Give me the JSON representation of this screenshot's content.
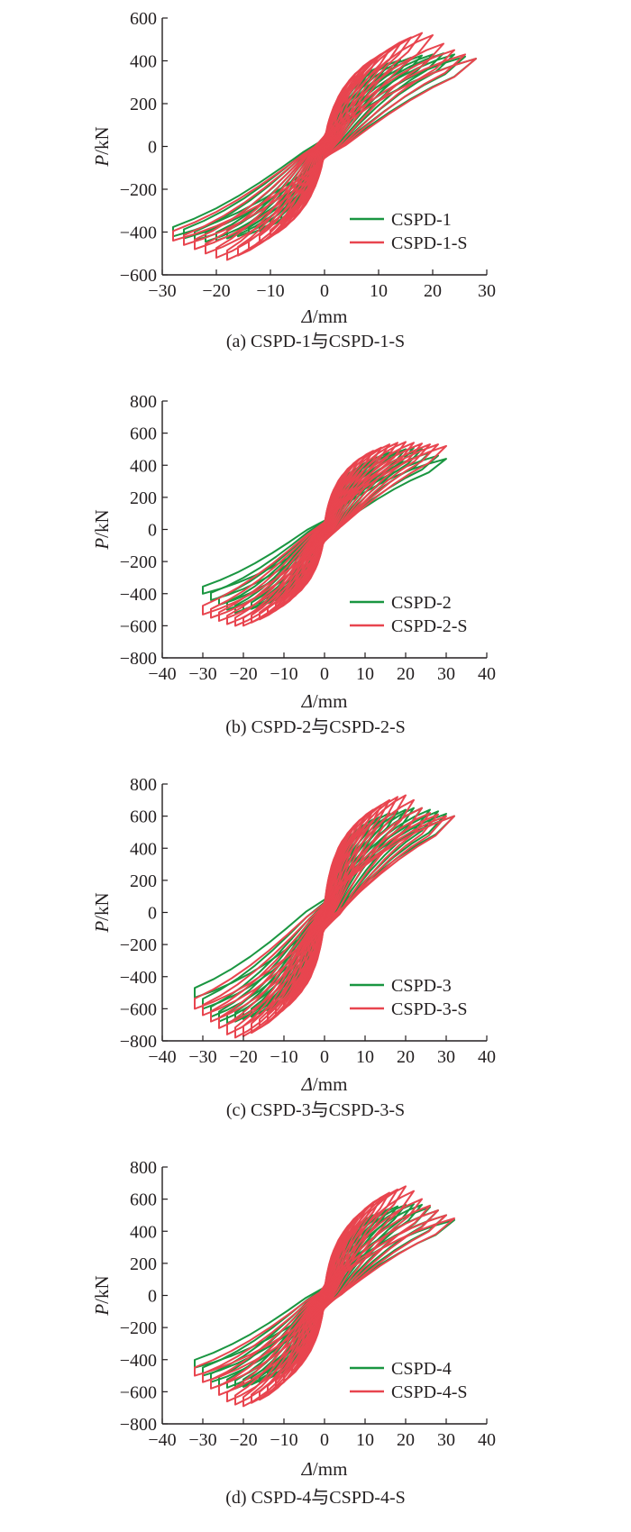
{
  "colors": {
    "series1": "#1a9641",
    "series2": "#e8454f",
    "axis": "#231f20"
  },
  "chart_data": [
    {
      "type": "line",
      "caption": "(a) CSPD-1与CSPD-1-S",
      "xlabel_var": "Δ",
      "xlabel_unit": "/mm",
      "ylabel_var": "P",
      "ylabel_unit": "/kN",
      "xlim": [
        -30,
        30
      ],
      "ylim": [
        -600,
        600
      ],
      "xticks": [
        -30,
        -20,
        -10,
        0,
        10,
        20,
        30
      ],
      "yticks": [
        -600,
        -400,
        -200,
        0,
        200,
        400,
        600
      ],
      "legend": "bottom-right",
      "series": [
        {
          "name": "CSPD-1",
          "color": "#1a9641",
          "amplitudes": [
            2,
            4,
            6,
            8,
            10,
            12,
            14,
            16,
            18,
            20,
            22,
            24,
            26,
            28
          ],
          "peak_pos": [
            150,
            240,
            300,
            340,
            370,
            390,
            405,
            415,
            425,
            430,
            435,
            430,
            420,
            410
          ],
          "peak_neg": [
            -150,
            -240,
            -300,
            -340,
            -370,
            -395,
            -410,
            -420,
            -430,
            -440,
            -445,
            -440,
            -430,
            -420
          ]
        },
        {
          "name": "CSPD-1-S",
          "color": "#e8454f",
          "amplitudes": [
            2,
            4,
            6,
            8,
            10,
            12,
            14,
            16,
            18,
            20,
            22,
            24,
            26,
            28
          ],
          "peak_pos": [
            160,
            260,
            330,
            380,
            420,
            450,
            480,
            510,
            530,
            520,
            480,
            450,
            430,
            410
          ],
          "peak_neg": [
            -160,
            -260,
            -330,
            -380,
            -420,
            -450,
            -480,
            -510,
            -530,
            -520,
            -500,
            -480,
            -460,
            -440
          ]
        }
      ]
    },
    {
      "type": "line",
      "caption": "(b) CSPD-2与CSPD-2-S",
      "xlabel_var": "Δ",
      "xlabel_unit": "/mm",
      "ylabel_var": "P",
      "ylabel_unit": "/kN",
      "xlim": [
        -40,
        40
      ],
      "ylim": [
        -800,
        800
      ],
      "xticks": [
        -40,
        -30,
        -20,
        -10,
        0,
        10,
        20,
        30,
        40
      ],
      "yticks": [
        -800,
        -600,
        -400,
        -200,
        0,
        200,
        400,
        600,
        800
      ],
      "legend": "bottom-right",
      "series": [
        {
          "name": "CSPD-2",
          "color": "#1a9641",
          "amplitudes": [
            2,
            4,
            6,
            8,
            10,
            12,
            14,
            16,
            18,
            20,
            22,
            24,
            26,
            28,
            30
          ],
          "peak_pos": [
            180,
            280,
            340,
            380,
            410,
            440,
            460,
            480,
            490,
            500,
            510,
            500,
            480,
            460,
            440
          ],
          "peak_neg": [
            -180,
            -280,
            -340,
            -380,
            -410,
            -440,
            -460,
            -480,
            -495,
            -510,
            -520,
            -500,
            -470,
            -440,
            -400
          ]
        },
        {
          "name": "CSPD-2-S",
          "color": "#e8454f",
          "amplitudes": [
            2,
            4,
            6,
            8,
            10,
            12,
            14,
            16,
            18,
            20,
            22,
            24,
            26,
            28,
            30
          ],
          "peak_pos": [
            200,
            300,
            370,
            420,
            460,
            490,
            510,
            530,
            540,
            545,
            540,
            535,
            530,
            530,
            520
          ],
          "peak_neg": [
            -200,
            -300,
            -370,
            -420,
            -460,
            -500,
            -530,
            -560,
            -580,
            -600,
            -600,
            -590,
            -570,
            -550,
            -530
          ]
        }
      ]
    },
    {
      "type": "line",
      "caption": "(c) CSPD-3与CSPD-3-S",
      "xlabel_var": "Δ",
      "xlabel_unit": "/mm",
      "ylabel_var": "P",
      "ylabel_unit": "/kN",
      "xlim": [
        -40,
        40
      ],
      "ylim": [
        -800,
        800
      ],
      "xticks": [
        -40,
        -30,
        -20,
        -10,
        0,
        10,
        20,
        30,
        40
      ],
      "yticks": [
        -800,
        -600,
        -400,
        -200,
        0,
        200,
        400,
        600,
        800
      ],
      "legend": "bottom-right",
      "series": [
        {
          "name": "CSPD-3",
          "color": "#1a9641",
          "amplitudes": [
            2,
            4,
            6,
            8,
            10,
            12,
            14,
            16,
            18,
            20,
            22,
            24,
            26,
            28,
            30,
            32
          ],
          "peak_pos": [
            250,
            380,
            460,
            510,
            550,
            580,
            600,
            620,
            630,
            640,
            650,
            650,
            640,
            630,
            615,
            600
          ],
          "peak_neg": [
            -250,
            -380,
            -460,
            -510,
            -550,
            -580,
            -610,
            -630,
            -650,
            -665,
            -680,
            -690,
            -680,
            -650,
            -600,
            -530
          ]
        },
        {
          "name": "CSPD-3-S",
          "color": "#e8454f",
          "amplitudes": [
            2,
            4,
            6,
            8,
            10,
            12,
            14,
            16,
            18,
            20,
            22,
            24,
            26,
            28,
            30,
            32
          ],
          "peak_pos": [
            270,
            400,
            490,
            550,
            600,
            640,
            670,
            700,
            720,
            730,
            700,
            650,
            620,
            610,
            600,
            600
          ],
          "peak_neg": [
            -270,
            -400,
            -490,
            -550,
            -600,
            -640,
            -680,
            -720,
            -750,
            -770,
            -780,
            -760,
            -720,
            -680,
            -640,
            -600
          ]
        }
      ]
    },
    {
      "type": "line",
      "caption": "(d) CSPD-4与CSPD-4-S",
      "xlabel_var": "Δ",
      "xlabel_unit": "/mm",
      "ylabel_var": "P",
      "ylabel_unit": "/kN",
      "xlim": [
        -40,
        40
      ],
      "ylim": [
        -800,
        800
      ],
      "xticks": [
        -40,
        -30,
        -20,
        -10,
        0,
        10,
        20,
        30,
        40
      ],
      "yticks": [
        -800,
        -600,
        -400,
        -200,
        0,
        200,
        400,
        600,
        800
      ],
      "legend": "bottom-right",
      "series": [
        {
          "name": "CSPD-4",
          "color": "#1a9641",
          "amplitudes": [
            2,
            4,
            6,
            8,
            10,
            12,
            14,
            16,
            18,
            20,
            22,
            24,
            26,
            28,
            30,
            32
          ],
          "peak_pos": [
            200,
            310,
            380,
            430,
            470,
            500,
            520,
            540,
            555,
            565,
            570,
            565,
            550,
            530,
            500,
            470
          ],
          "peak_neg": [
            -200,
            -310,
            -380,
            -430,
            -470,
            -500,
            -520,
            -540,
            -555,
            -570,
            -580,
            -575,
            -560,
            -540,
            -500,
            -450
          ]
        },
        {
          "name": "CSPD-4-S",
          "color": "#e8454f",
          "amplitudes": [
            2,
            4,
            6,
            8,
            10,
            12,
            14,
            16,
            18,
            20,
            22,
            24,
            26,
            28,
            30,
            32
          ],
          "peak_pos": [
            220,
            340,
            420,
            480,
            530,
            570,
            610,
            640,
            660,
            680,
            650,
            600,
            560,
            530,
            500,
            480
          ],
          "peak_neg": [
            -220,
            -340,
            -420,
            -480,
            -530,
            -570,
            -610,
            -650,
            -670,
            -690,
            -680,
            -660,
            -620,
            -580,
            -540,
            -500
          ]
        }
      ]
    }
  ]
}
